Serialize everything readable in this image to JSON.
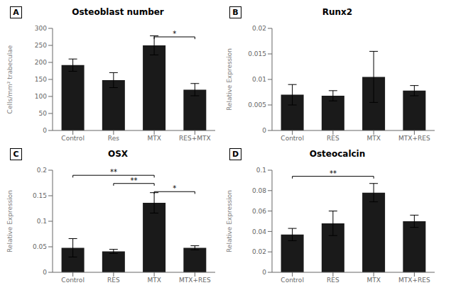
{
  "chart_data": [
    {
      "type": "bar",
      "label": "A",
      "title": "Osteoblast number",
      "y_label": "Cells/mm² trabeculae",
      "categories": [
        "Control",
        "Res",
        "MTX",
        "RES+MTX"
      ],
      "values": [
        192,
        148,
        250,
        120
      ],
      "errors": [
        18,
        22,
        28,
        18
      ],
      "ylim": [
        0,
        300
      ],
      "yticks": [
        0,
        50,
        100,
        150,
        200,
        250,
        300
      ],
      "color": "#1a1a1a",
      "annotations": [
        {
          "x1": "MTX",
          "x2": "RES+MTX",
          "y": 275,
          "label": "*"
        }
      ]
    },
    {
      "type": "bar",
      "label": "B",
      "title": "Runx2",
      "y_label": "Relative Expression",
      "categories": [
        "Control",
        "RES",
        "MTX",
        "MTX+RES"
      ],
      "values": [
        0.007,
        0.0068,
        0.0105,
        0.0078
      ],
      "errors": [
        0.002,
        0.001,
        0.005,
        0.001
      ],
      "ylim": [
        0,
        0.02
      ],
      "yticks": [
        0,
        0.005,
        0.01,
        0.015,
        0.02
      ],
      "color": "#1a1a1a",
      "annotations": []
    },
    {
      "type": "bar",
      "label": "C",
      "title": "OSX",
      "y_label": "Relative Expression",
      "categories": [
        "Control",
        "RES",
        "MTX",
        "MTX+RES"
      ],
      "values": [
        0.048,
        0.041,
        0.136,
        0.048
      ],
      "errors": [
        0.018,
        0.004,
        0.02,
        0.004
      ],
      "ylim": [
        0,
        0.2
      ],
      "yticks": [
        0,
        0.05,
        0.1,
        0.15,
        0.2
      ],
      "color": "#1a1a1a",
      "annotations": [
        {
          "x1": "Control",
          "x2": "MTX",
          "y": 0.19,
          "label": "**"
        },
        {
          "x1": "RES",
          "x2": "MTX",
          "y": 0.174,
          "label": "**"
        },
        {
          "x1": "MTX",
          "x2": "MTX+RES",
          "y": 0.158,
          "label": "*"
        }
      ]
    },
    {
      "type": "bar",
      "label": "D",
      "title": "Osteocalcin",
      "y_label": "Relative Expression",
      "categories": [
        "Control",
        "RES",
        "MTX",
        "MTX+RES"
      ],
      "values": [
        0.037,
        0.048,
        0.078,
        0.05
      ],
      "errors": [
        0.006,
        0.012,
        0.009,
        0.006
      ],
      "ylim": [
        0,
        0.1
      ],
      "yticks": [
        0,
        0.02,
        0.04,
        0.06,
        0.08,
        0.1
      ],
      "color": "#1a1a1a",
      "annotations": [
        {
          "x1": "Control",
          "x2": "MTX",
          "y": 0.094,
          "label": "**"
        }
      ]
    }
  ]
}
